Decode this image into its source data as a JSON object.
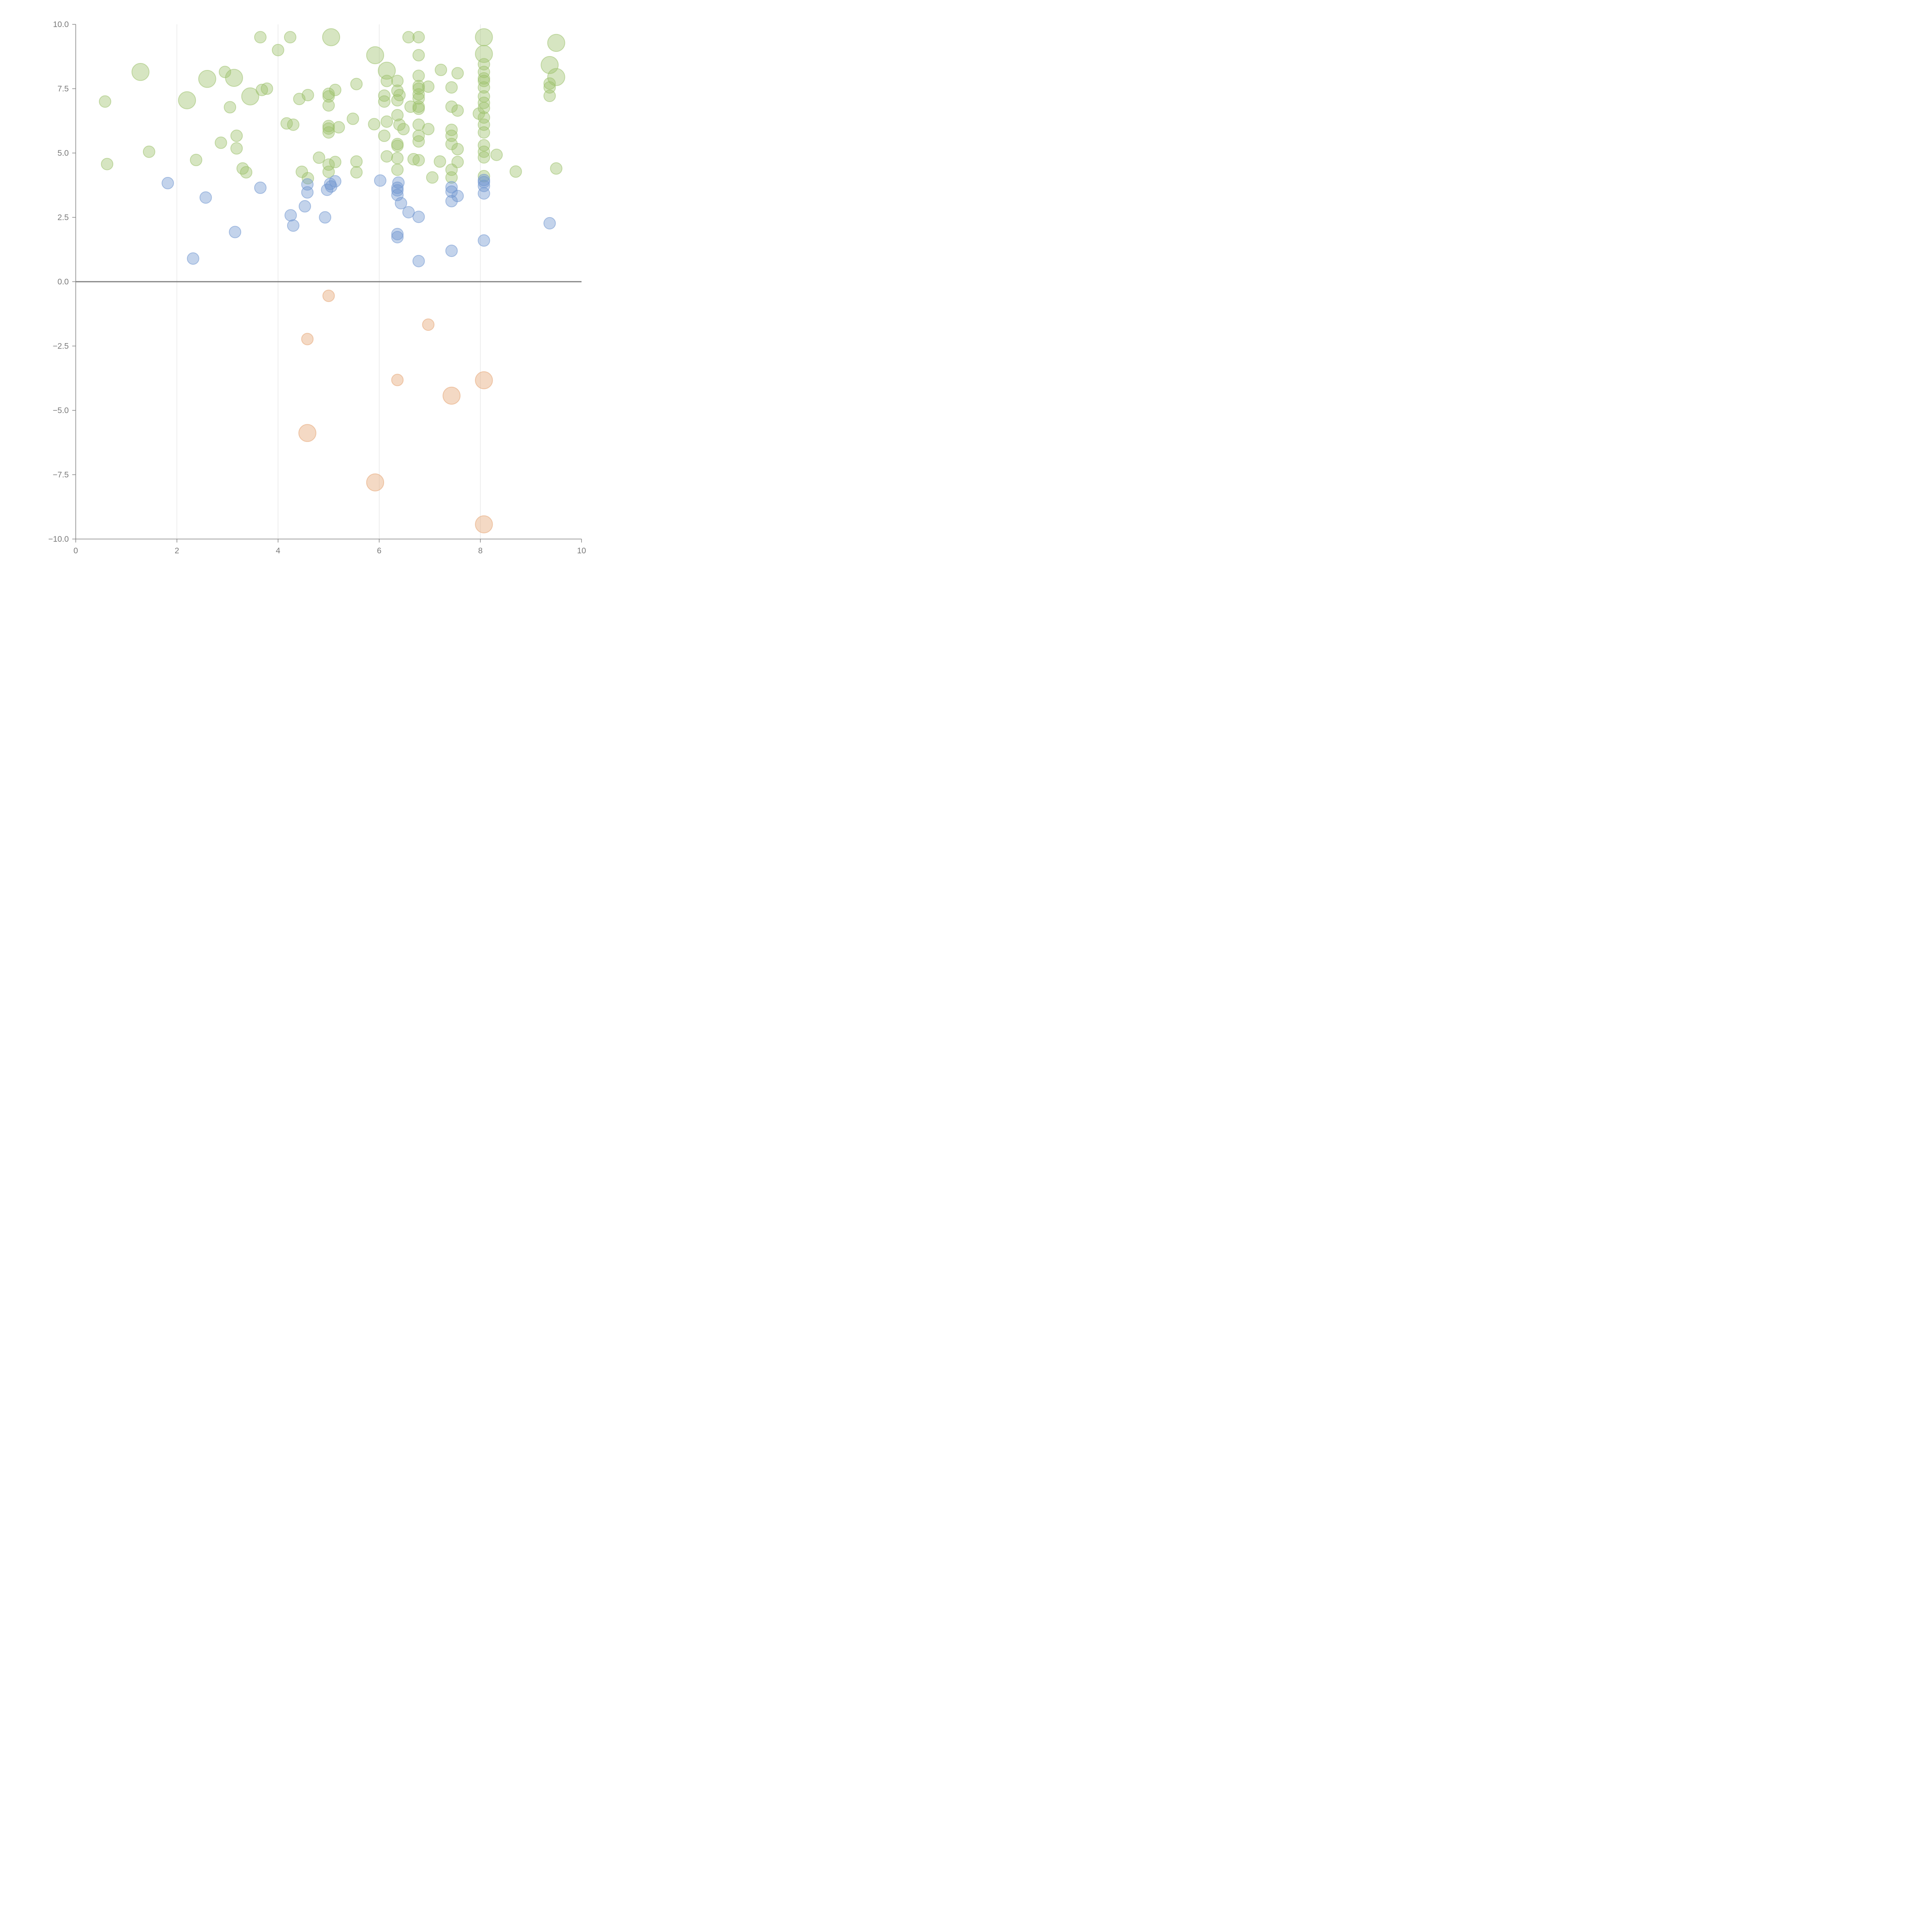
{
  "chart_data": {
    "type": "scatter",
    "title": "",
    "xlabel": "",
    "ylabel": "",
    "xlim": [
      0,
      10
    ],
    "ylim": [
      -10,
      10
    ],
    "x_ticks": [
      0,
      2,
      4,
      6,
      8,
      10
    ],
    "x_tick_labels": [
      "0",
      "2",
      "4",
      "6",
      "8",
      "10"
    ],
    "y_ticks": [
      10,
      7.5,
      5,
      2.5,
      0,
      -2.5,
      -5,
      -7.5,
      -10
    ],
    "y_tick_labels": [
      "10.0",
      "7.5",
      "5.0",
      "2.5",
      "0.0",
      "−2.5",
      "−5.0",
      "−7.5",
      "−10.0"
    ],
    "grid": "vertical",
    "zero_line": true,
    "colors": {
      "green": "#9dc16b",
      "blue": "#6f96cf",
      "orange": "#e5a472",
      "axis": "#808080",
      "grid": "#dddddd"
    },
    "series": [
      {
        "name": "green",
        "color": "#9dc16b",
        "points": [
          [
            1.28,
            8.15,
            2.2
          ],
          [
            0.58,
            7.0,
            1
          ],
          [
            0.62,
            4.57,
            1
          ],
          [
            1.45,
            5.05,
            1
          ],
          [
            2.2,
            7.05,
            2.2
          ],
          [
            2.6,
            7.88,
            2.2
          ],
          [
            2.95,
            8.15,
            1
          ],
          [
            3.05,
            6.78,
            1
          ],
          [
            3.13,
            7.92,
            2.2
          ],
          [
            3.45,
            7.2,
            2.2
          ],
          [
            3.65,
            9.5,
            1
          ],
          [
            3.68,
            7.45,
            1
          ],
          [
            3.78,
            7.5,
            1
          ],
          [
            2.87,
            5.4,
            1
          ],
          [
            3.18,
            5.67,
            1
          ],
          [
            3.18,
            5.18,
            1
          ],
          [
            3.3,
            4.4,
            1
          ],
          [
            3.37,
            4.25,
            1
          ],
          [
            2.38,
            4.73,
            1
          ],
          [
            4.0,
            9.0,
            1
          ],
          [
            4.24,
            9.5,
            1
          ],
          [
            5.05,
            9.5,
            2.2
          ],
          [
            4.17,
            6.15,
            1
          ],
          [
            4.3,
            6.1,
            1
          ],
          [
            4.42,
            7.1,
            1
          ],
          [
            4.59,
            7.25,
            1
          ],
          [
            4.47,
            4.27,
            1
          ],
          [
            4.59,
            4.02,
            1
          ],
          [
            4.81,
            4.82,
            1
          ],
          [
            5.0,
            7.3,
            1
          ],
          [
            5.0,
            7.2,
            1
          ],
          [
            5.13,
            7.45,
            1
          ],
          [
            5.0,
            6.85,
            1
          ],
          [
            5.0,
            6.05,
            1
          ],
          [
            5.0,
            5.95,
            1
          ],
          [
            5.0,
            5.8,
            1
          ],
          [
            5.2,
            6.0,
            1
          ],
          [
            5.0,
            4.55,
            1
          ],
          [
            5.0,
            4.27,
            1
          ],
          [
            5.13,
            4.65,
            1
          ],
          [
            5.48,
            6.33,
            1
          ],
          [
            5.55,
            7.68,
            1
          ],
          [
            5.55,
            4.67,
            1
          ],
          [
            5.55,
            4.25,
            1
          ],
          [
            5.92,
            8.8,
            2.2
          ],
          [
            5.9,
            6.12,
            1
          ],
          [
            6.15,
            8.2,
            2.2
          ],
          [
            6.15,
            7.8,
            1
          ],
          [
            6.1,
            7.23,
            1
          ],
          [
            6.1,
            7.0,
            1
          ],
          [
            6.15,
            6.22,
            1
          ],
          [
            6.1,
            5.67,
            1
          ],
          [
            6.15,
            4.87,
            1
          ],
          [
            6.58,
            9.5,
            1
          ],
          [
            6.36,
            7.8,
            1
          ],
          [
            6.36,
            7.42,
            1
          ],
          [
            6.4,
            7.25,
            1
          ],
          [
            6.36,
            7.05,
            1
          ],
          [
            6.36,
            6.47,
            1
          ],
          [
            6.4,
            6.1,
            1
          ],
          [
            6.48,
            5.93,
            1
          ],
          [
            6.36,
            5.35,
            1
          ],
          [
            6.36,
            5.28,
            1
          ],
          [
            6.36,
            4.8,
            1
          ],
          [
            6.36,
            4.35,
            1
          ],
          [
            6.62,
            6.8,
            1
          ],
          [
            6.78,
            9.5,
            1
          ],
          [
            6.78,
            8.8,
            1
          ],
          [
            6.78,
            8.0,
            1
          ],
          [
            6.78,
            7.6,
            1
          ],
          [
            6.78,
            7.5,
            1
          ],
          [
            6.78,
            7.28,
            1
          ],
          [
            6.78,
            7.12,
            1
          ],
          [
            6.78,
            6.8,
            1
          ],
          [
            6.78,
            6.72,
            1
          ],
          [
            6.78,
            6.1,
            1
          ],
          [
            6.78,
            5.67,
            1
          ],
          [
            6.78,
            5.45,
            1
          ],
          [
            6.78,
            4.72,
            1
          ],
          [
            6.68,
            4.76,
            1
          ],
          [
            6.97,
            5.93,
            1
          ],
          [
            6.97,
            7.58,
            1
          ],
          [
            7.05,
            4.05,
            1
          ],
          [
            7.22,
            8.23,
            1
          ],
          [
            7.2,
            4.67,
            1
          ],
          [
            7.43,
            7.55,
            1
          ],
          [
            7.43,
            6.8,
            1
          ],
          [
            7.43,
            5.9,
            1
          ],
          [
            7.43,
            5.67,
            1
          ],
          [
            7.43,
            5.35,
            1
          ],
          [
            7.43,
            4.35,
            1
          ],
          [
            7.43,
            4.05,
            1
          ],
          [
            7.55,
            8.1,
            1
          ],
          [
            7.55,
            6.65,
            1
          ],
          [
            7.55,
            5.15,
            1
          ],
          [
            7.55,
            4.65,
            1
          ],
          [
            8.07,
            9.5,
            2.2
          ],
          [
            8.07,
            8.85,
            2.2
          ],
          [
            8.07,
            8.45,
            1
          ],
          [
            8.07,
            8.15,
            1
          ],
          [
            8.07,
            7.9,
            1
          ],
          [
            8.07,
            7.8,
            1
          ],
          [
            8.07,
            7.55,
            1
          ],
          [
            8.07,
            7.2,
            1
          ],
          [
            8.07,
            6.95,
            1
          ],
          [
            8.07,
            6.75,
            1
          ],
          [
            8.07,
            6.38,
            1
          ],
          [
            8.07,
            6.1,
            1
          ],
          [
            8.07,
            5.8,
            1
          ],
          [
            8.07,
            5.3,
            1
          ],
          [
            8.07,
            5.05,
            1
          ],
          [
            8.07,
            4.83,
            1
          ],
          [
            8.07,
            4.1,
            1
          ],
          [
            7.97,
            6.53,
            1
          ],
          [
            8.32,
            4.93,
            1
          ],
          [
            8.7,
            4.28,
            1
          ],
          [
            9.5,
            9.28,
            2.2
          ],
          [
            9.37,
            8.42,
            2.2
          ],
          [
            9.5,
            7.95,
            2.2
          ],
          [
            9.37,
            7.7,
            1
          ],
          [
            9.37,
            7.55,
            1
          ],
          [
            9.37,
            7.22,
            1
          ],
          [
            9.5,
            4.4,
            1
          ]
        ]
      },
      {
        "name": "blue",
        "color": "#6f96cf",
        "points": [
          [
            1.82,
            3.83,
            1
          ],
          [
            2.57,
            3.27,
            1
          ],
          [
            3.65,
            3.65,
            1
          ],
          [
            3.15,
            1.93,
            1
          ],
          [
            2.32,
            0.9,
            1
          ],
          [
            4.25,
            2.58,
            1
          ],
          [
            4.3,
            2.18,
            1
          ],
          [
            4.53,
            2.93,
            1
          ],
          [
            4.58,
            3.78,
            1
          ],
          [
            4.58,
            3.47,
            1
          ],
          [
            4.93,
            2.5,
            1
          ],
          [
            4.97,
            3.57,
            1
          ],
          [
            5.03,
            3.8,
            1
          ],
          [
            5.05,
            3.7,
            1
          ],
          [
            5.13,
            3.9,
            1
          ],
          [
            6.02,
            3.93,
            1
          ],
          [
            6.38,
            3.85,
            1
          ],
          [
            6.36,
            3.65,
            1
          ],
          [
            6.36,
            3.55,
            1
          ],
          [
            6.36,
            3.37,
            1
          ],
          [
            6.43,
            3.05,
            1
          ],
          [
            6.58,
            2.7,
            1
          ],
          [
            6.78,
            2.52,
            1
          ],
          [
            6.36,
            1.85,
            1
          ],
          [
            6.36,
            1.73,
            1
          ],
          [
            6.78,
            0.8,
            1
          ],
          [
            7.43,
            3.67,
            1
          ],
          [
            7.43,
            3.5,
            1
          ],
          [
            7.55,
            3.33,
            1
          ],
          [
            7.43,
            3.13,
            1
          ],
          [
            7.43,
            1.2,
            1
          ],
          [
            8.07,
            3.95,
            1
          ],
          [
            8.07,
            3.87,
            1
          ],
          [
            8.07,
            3.72,
            1
          ],
          [
            8.07,
            3.43,
            1
          ],
          [
            8.07,
            1.6,
            1
          ],
          [
            9.37,
            2.27,
            1
          ]
        ]
      },
      {
        "name": "orange",
        "color": "#e5a472",
        "points": [
          [
            5.0,
            -0.55,
            1
          ],
          [
            6.97,
            -1.67,
            1
          ],
          [
            4.58,
            -2.23,
            1
          ],
          [
            6.36,
            -3.82,
            1
          ],
          [
            8.07,
            -3.83,
            2.2
          ],
          [
            7.43,
            -4.43,
            2.2
          ],
          [
            4.58,
            -5.88,
            2.2
          ],
          [
            5.92,
            -7.8,
            2.2
          ],
          [
            8.07,
            -9.43,
            2.2
          ]
        ]
      }
    ]
  }
}
